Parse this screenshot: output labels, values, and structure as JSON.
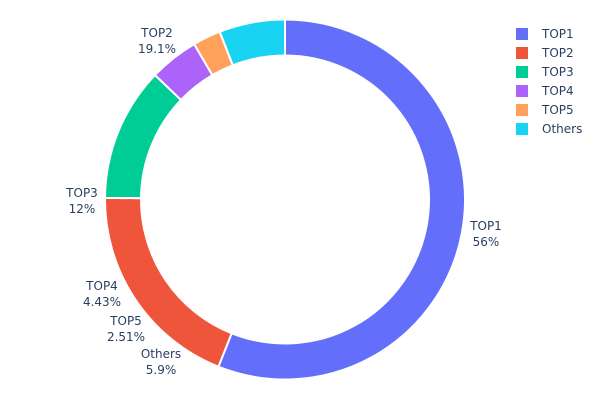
{
  "chart_data": {
    "type": "pie",
    "hole": 0.8,
    "direction": "clockwise",
    "labels": [
      "TOP1",
      "TOP2",
      "TOP3",
      "TOP4",
      "TOP5",
      "Others"
    ],
    "values": [
      56,
      19.1,
      12,
      4.43,
      2.51,
      5.9
    ],
    "value_labels": [
      "56%",
      "19.1%",
      "12%",
      "4.43%",
      "2.51%",
      "5.9%"
    ],
    "colors": [
      "#636efa",
      "#EF553B",
      "#00cc96",
      "#ab63fa",
      "#FFA15A",
      "#19d3f3"
    ],
    "legend": {
      "placement": "top-right",
      "entries": [
        "TOP1",
        "TOP2",
        "TOP3",
        "TOP4",
        "TOP5",
        "Others"
      ]
    }
  }
}
